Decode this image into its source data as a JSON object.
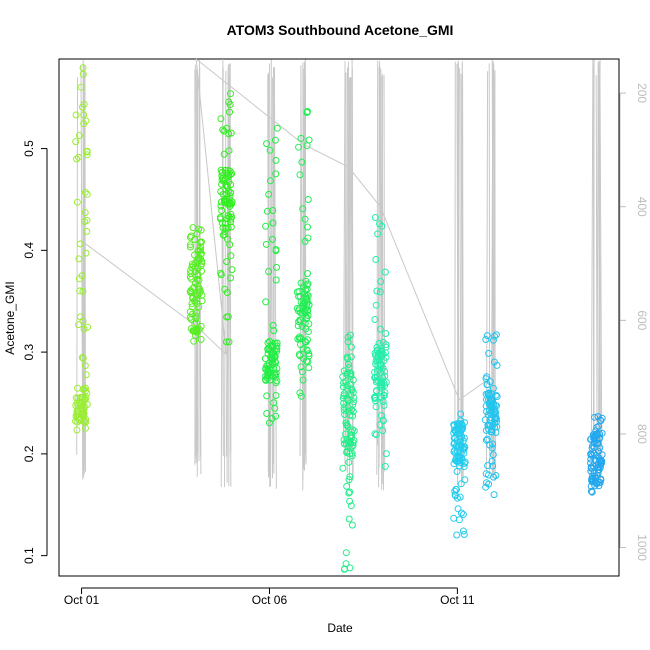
{
  "chart_data": {
    "type": "scatter",
    "title": "ATOM3 Southbound Acetone_GMI",
    "xlabel": "Date",
    "ylabel": "Acetone_GMI",
    "xlim": [
      "2017-10-01",
      "2017-10-15"
    ],
    "ylim": [
      0.1,
      0.55
    ],
    "x_ticks": [
      "Oct 01",
      "Oct 06",
      "Oct 11"
    ],
    "y_ticks": [
      "0.1",
      "0.2",
      "0.3",
      "0.4",
      "0.5"
    ],
    "y2_ticks": [
      "200",
      "400",
      "600",
      "800",
      "1000"
    ],
    "y2_axis": "pressure (hPa), inverted, drawn in light grey",
    "grid": false,
    "point_style": "open circles, colored green to blue by date",
    "colors": [
      "#7fff00",
      "#00ff40",
      "#00ffa0",
      "#00e5ff",
      "#00a0ff"
    ],
    "profile_line_color": "#c8c8c8",
    "series": [
      {
        "date": "2017-10-01",
        "x_day": 0.0,
        "y_min": 0.22,
        "y_max": 0.58,
        "y_cluster": [
          0.23,
          0.27
        ],
        "color": "#99ee33"
      },
      {
        "date": "2017-10-04",
        "x_day": 3.05,
        "y_min": 0.31,
        "y_max": 0.43,
        "y_cluster": [
          0.32,
          0.42
        ],
        "color": "#55ee22"
      },
      {
        "date": "2017-10-04",
        "x_day": 3.85,
        "y_min": 0.31,
        "y_max": 0.56,
        "y_cluster": [
          0.42,
          0.48
        ],
        "color": "#33ee22"
      },
      {
        "date": "2017-10-06",
        "x_day": 5.05,
        "y_min": 0.23,
        "y_max": 0.52,
        "y_cluster": [
          0.27,
          0.31
        ],
        "color": "#22ee44"
      },
      {
        "date": "2017-10-07",
        "x_day": 5.9,
        "y_min": 0.23,
        "y_max": 0.54,
        "y_cluster": [
          0.29,
          0.37
        ],
        "color": "#22ee55"
      },
      {
        "date": "2017-10-08",
        "x_day": 7.1,
        "y_min": 0.085,
        "y_max": 0.32,
        "y_cluster": [
          0.2,
          0.29
        ],
        "color": "#22ee88"
      },
      {
        "date": "2017-10-09",
        "x_day": 7.95,
        "y_min": 0.18,
        "y_max": 0.44,
        "y_cluster": [
          0.25,
          0.31
        ],
        "color": "#22eeaa"
      },
      {
        "date": "2017-10-11",
        "x_day": 10.05,
        "y_min": 0.12,
        "y_max": 0.24,
        "y_cluster": [
          0.19,
          0.23
        ],
        "color": "#22ccee"
      },
      {
        "date": "2017-10-11",
        "x_day": 10.9,
        "y_min": 0.16,
        "y_max": 0.32,
        "y_cluster": [
          0.22,
          0.26
        ],
        "color": "#22c4ee"
      },
      {
        "date": "2017-10-14",
        "x_day": 13.7,
        "y_min": 0.16,
        "y_max": 0.24,
        "y_cluster": [
          0.17,
          0.22
        ],
        "color": "#22a8ee"
      }
    ]
  }
}
